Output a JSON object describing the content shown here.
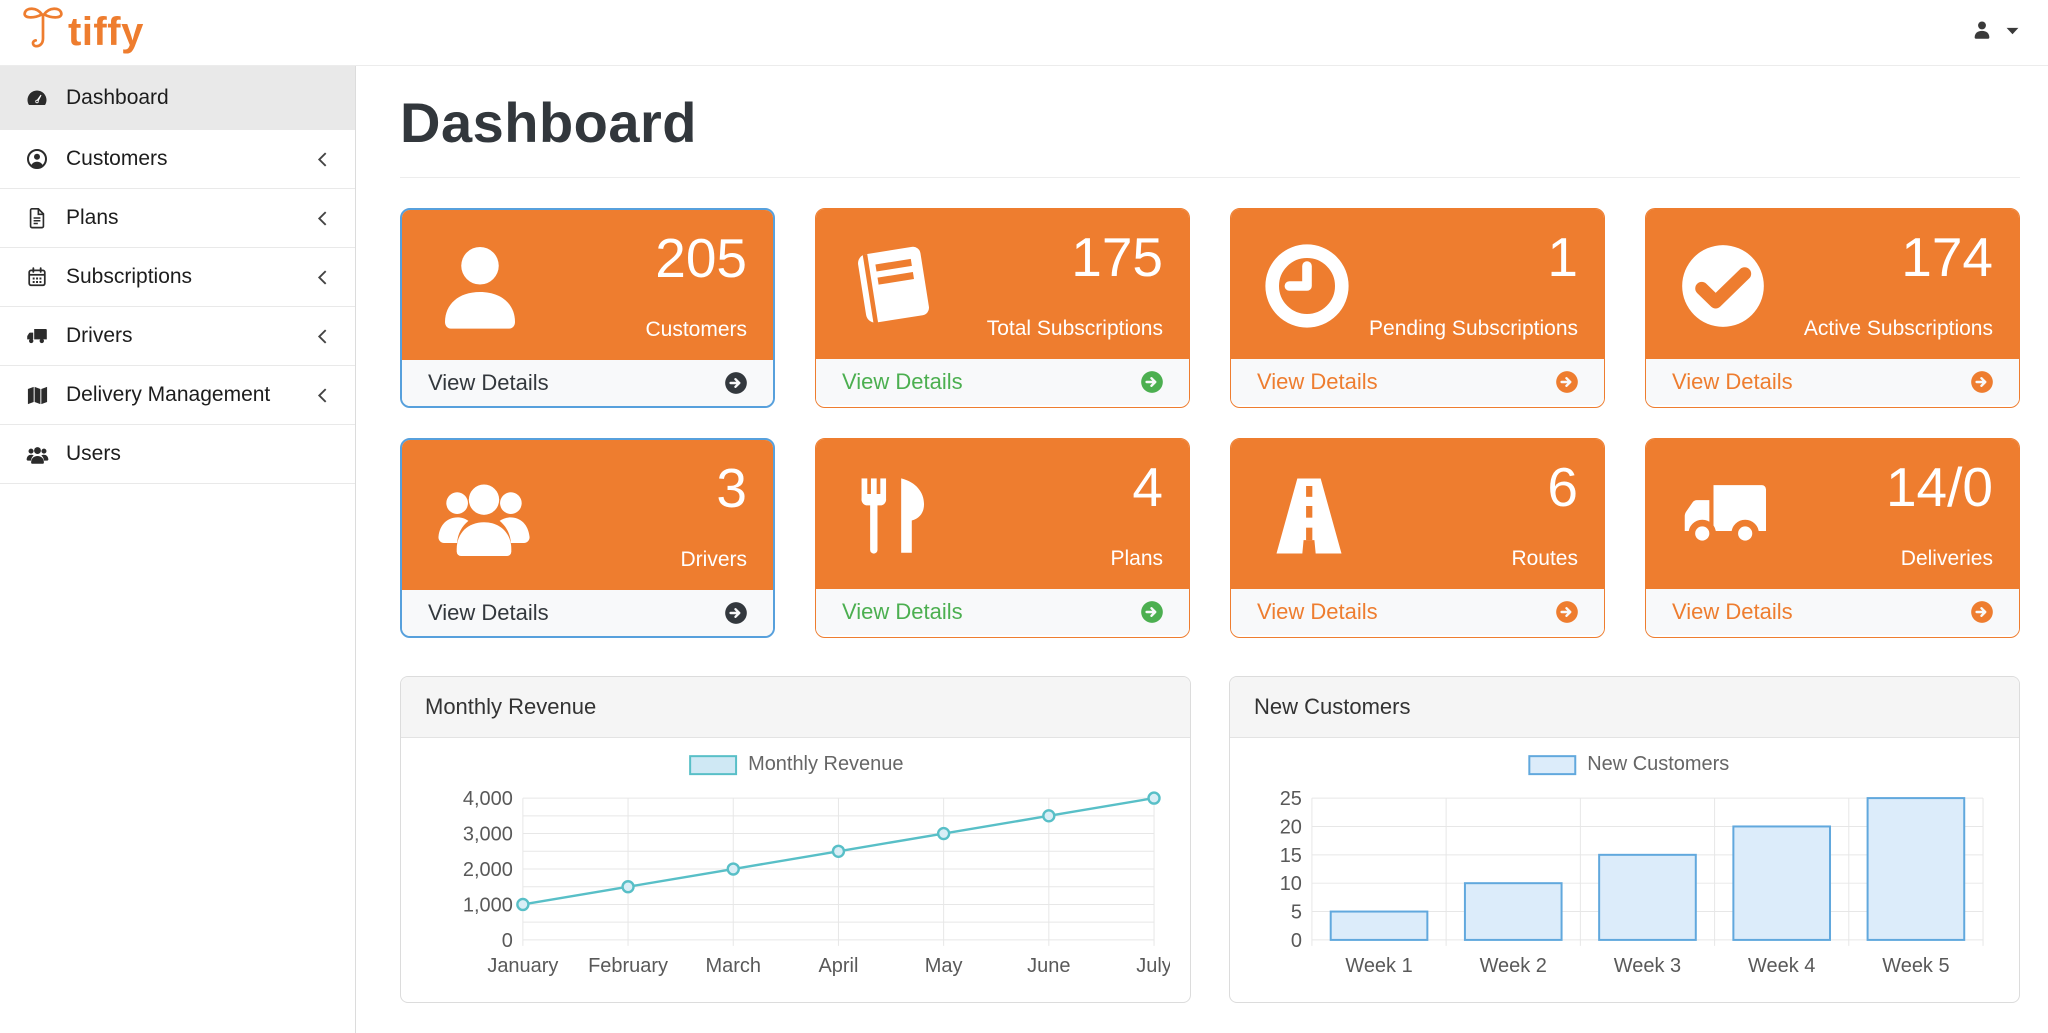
{
  "brand": {
    "name": "tiffy",
    "logo_icon": "tiffy-t-logo-icon",
    "color": "#ee7d2f"
  },
  "navbar": {
    "user_menu_icon": "user-icon",
    "caret_icon": "caret-down-icon"
  },
  "sidebar": {
    "items": [
      {
        "label": "Dashboard",
        "icon": "tachometer-icon",
        "active": true,
        "has_submenu": false
      },
      {
        "label": "Customers",
        "icon": "user-circle-icon",
        "active": false,
        "has_submenu": true
      },
      {
        "label": "Plans",
        "icon": "file-icon",
        "active": false,
        "has_submenu": true
      },
      {
        "label": "Subscriptions",
        "icon": "calendar-icon",
        "active": false,
        "has_submenu": true
      },
      {
        "label": "Drivers",
        "icon": "truck-icon",
        "active": false,
        "has_submenu": true
      },
      {
        "label": "Delivery Management",
        "icon": "map-icon",
        "active": false,
        "has_submenu": true
      },
      {
        "label": "Users",
        "icon": "users-icon",
        "active": false,
        "has_submenu": false
      }
    ]
  },
  "page": {
    "title": "Dashboard"
  },
  "stat_cards": [
    {
      "value": "205",
      "label": "Customers",
      "icon": "user-icon",
      "view_details": "View Details",
      "link_color": "#33383d",
      "border": "blue"
    },
    {
      "value": "175",
      "label": "Total Subscriptions",
      "icon": "book-icon",
      "view_details": "View Details",
      "link_color": "#4caf50",
      "border": "orange"
    },
    {
      "value": "1",
      "label": "Pending Subscriptions",
      "icon": "clock-icon",
      "view_details": "View Details",
      "link_color": "#ee7d2f",
      "border": "orange"
    },
    {
      "value": "174",
      "label": "Active Subscriptions",
      "icon": "check-circle-icon",
      "view_details": "View Details",
      "link_color": "#ee7d2f",
      "border": "orange"
    },
    {
      "value": "3",
      "label": "Drivers",
      "icon": "users-icon",
      "view_details": "View Details",
      "link_color": "#33383d",
      "border": "blue"
    },
    {
      "value": "4",
      "label": "Plans",
      "icon": "utensils-icon",
      "view_details": "View Details",
      "link_color": "#4caf50",
      "border": "orange"
    },
    {
      "value": "6",
      "label": "Routes",
      "icon": "road-icon",
      "view_details": "View Details",
      "link_color": "#ee7d2f",
      "border": "orange"
    },
    {
      "value": "14/0",
      "label": "Deliveries",
      "icon": "truck-icon",
      "view_details": "View Details",
      "link_color": "#ee7d2f",
      "border": "orange"
    }
  ],
  "chart_data": [
    {
      "type": "line",
      "title": "Monthly Revenue",
      "legend_label": "Monthly Revenue",
      "legend_position": "top-center",
      "categories": [
        "January",
        "February",
        "March",
        "April",
        "May",
        "June",
        "July"
      ],
      "values": [
        1000,
        1500,
        2000,
        2500,
        3000,
        3500,
        4000
      ],
      "xlabel": "",
      "ylabel": "",
      "ylim": [
        0,
        4000
      ],
      "tick_step": 1000,
      "grid_step": 500,
      "grid": true,
      "stroke": "#58bfc7",
      "fill": "#cfe8f4",
      "point_fill": "#d9eef6"
    },
    {
      "type": "bar",
      "title": "New Customers",
      "legend_label": "New Customers",
      "legend_position": "top-center",
      "categories": [
        "Week 1",
        "Week 2",
        "Week 3",
        "Week 4",
        "Week 5"
      ],
      "values": [
        5,
        10,
        15,
        20,
        25
      ],
      "xlabel": "",
      "ylabel": "",
      "ylim": [
        0,
        25
      ],
      "tick_step": 5,
      "grid_step": 5,
      "grid": true,
      "stroke": "#61a8dd",
      "fill": "#dcecfa"
    }
  ],
  "colors": {
    "orange": "#ee7d2f",
    "green": "#4caf50",
    "dark": "#33383d",
    "blue_card_border": "#57a0dc",
    "footer_bg": "#f8f9fa"
  }
}
